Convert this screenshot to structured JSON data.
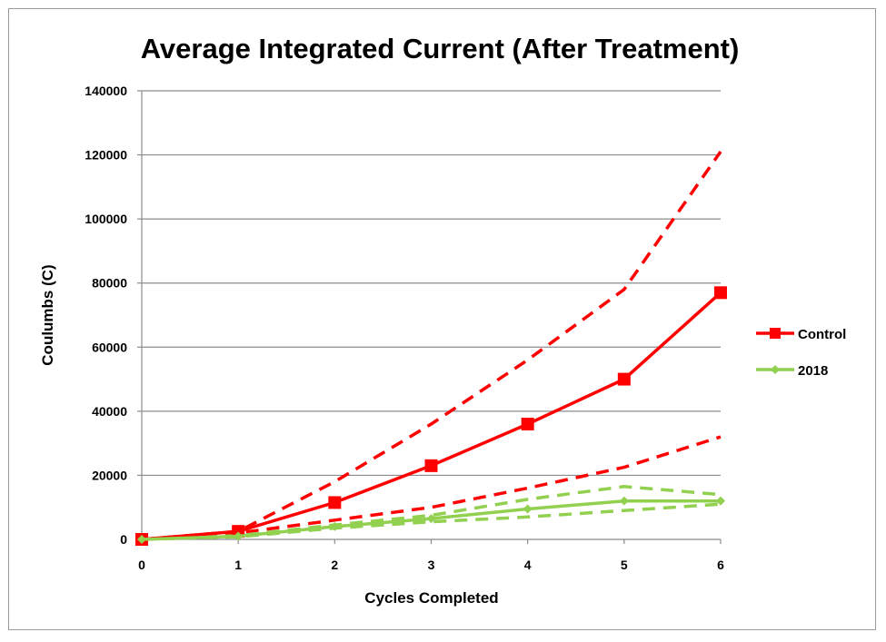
{
  "chart_data": {
    "type": "line",
    "title": "Average Integrated Current (After Treatment)",
    "xlabel": "Cycles Completed",
    "ylabel": "Coulumbs (C)",
    "x": [
      0,
      1,
      2,
      3,
      4,
      5,
      6
    ],
    "xticks": [
      "0",
      "1",
      "2",
      "3",
      "4",
      "5",
      "6"
    ],
    "yticks": [
      "0",
      "20000",
      "40000",
      "60000",
      "80000",
      "100000",
      "120000",
      "140000"
    ],
    "ylim": [
      0,
      140000
    ],
    "xlim": [
      0,
      6
    ],
    "grid": "horizontal",
    "legend_position": "right",
    "series": [
      {
        "name": "Control",
        "color": "#ff0000",
        "marker": "square",
        "values": [
          0,
          2500,
          11500,
          23000,
          36000,
          50000,
          77000
        ],
        "upper_bound": [
          0,
          2500,
          18000,
          36000,
          56000,
          78000,
          121000
        ],
        "lower_bound": [
          0,
          2000,
          6000,
          10000,
          16000,
          22500,
          32000
        ]
      },
      {
        "name": "2018",
        "color": "#92d050",
        "marker": "diamond",
        "values": [
          0,
          1000,
          4000,
          6500,
          9500,
          12000,
          12000
        ],
        "upper_bound": [
          0,
          1200,
          4500,
          7500,
          12500,
          16500,
          14000
        ],
        "lower_bound": [
          0,
          800,
          3500,
          5500,
          7000,
          9000,
          11000
        ]
      }
    ]
  }
}
